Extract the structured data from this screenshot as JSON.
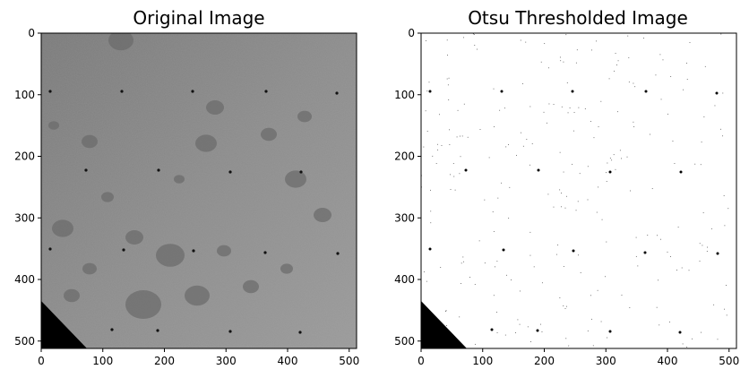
{
  "chart_data": [
    {
      "type": "image",
      "title": "Original Image",
      "xlim": [
        0,
        512
      ],
      "ylim": [
        512,
        0
      ],
      "xticks": [
        0,
        100,
        200,
        300,
        400,
        500
      ],
      "yticks": [
        0,
        100,
        200,
        300,
        400,
        500
      ],
      "xtick_labels": [
        "0",
        "100",
        "200",
        "300",
        "400",
        "500"
      ],
      "ytick_labels": [
        "0",
        "100",
        "200",
        "300",
        "400",
        "500"
      ],
      "image_content": "grayscale lunar surface photograph with craters, black corner region at lower-left",
      "colormap": "gray",
      "grid": false
    },
    {
      "type": "image",
      "title": "Otsu Thresholded Image",
      "xlim": [
        0,
        512
      ],
      "ylim": [
        512,
        0
      ],
      "xticks": [
        0,
        100,
        200,
        300,
        400,
        500
      ],
      "yticks": [
        0,
        100,
        200,
        300,
        400,
        500
      ],
      "xtick_labels": [
        "0",
        "100",
        "200",
        "300",
        "400",
        "500"
      ],
      "ytick_labels": [
        "0",
        "100",
        "200",
        "300",
        "400",
        "500"
      ],
      "image_content": "binary (black/white) mask: mostly white with sparse black dots and black lower-left corner",
      "colormap": "binary",
      "grid": false
    }
  ]
}
